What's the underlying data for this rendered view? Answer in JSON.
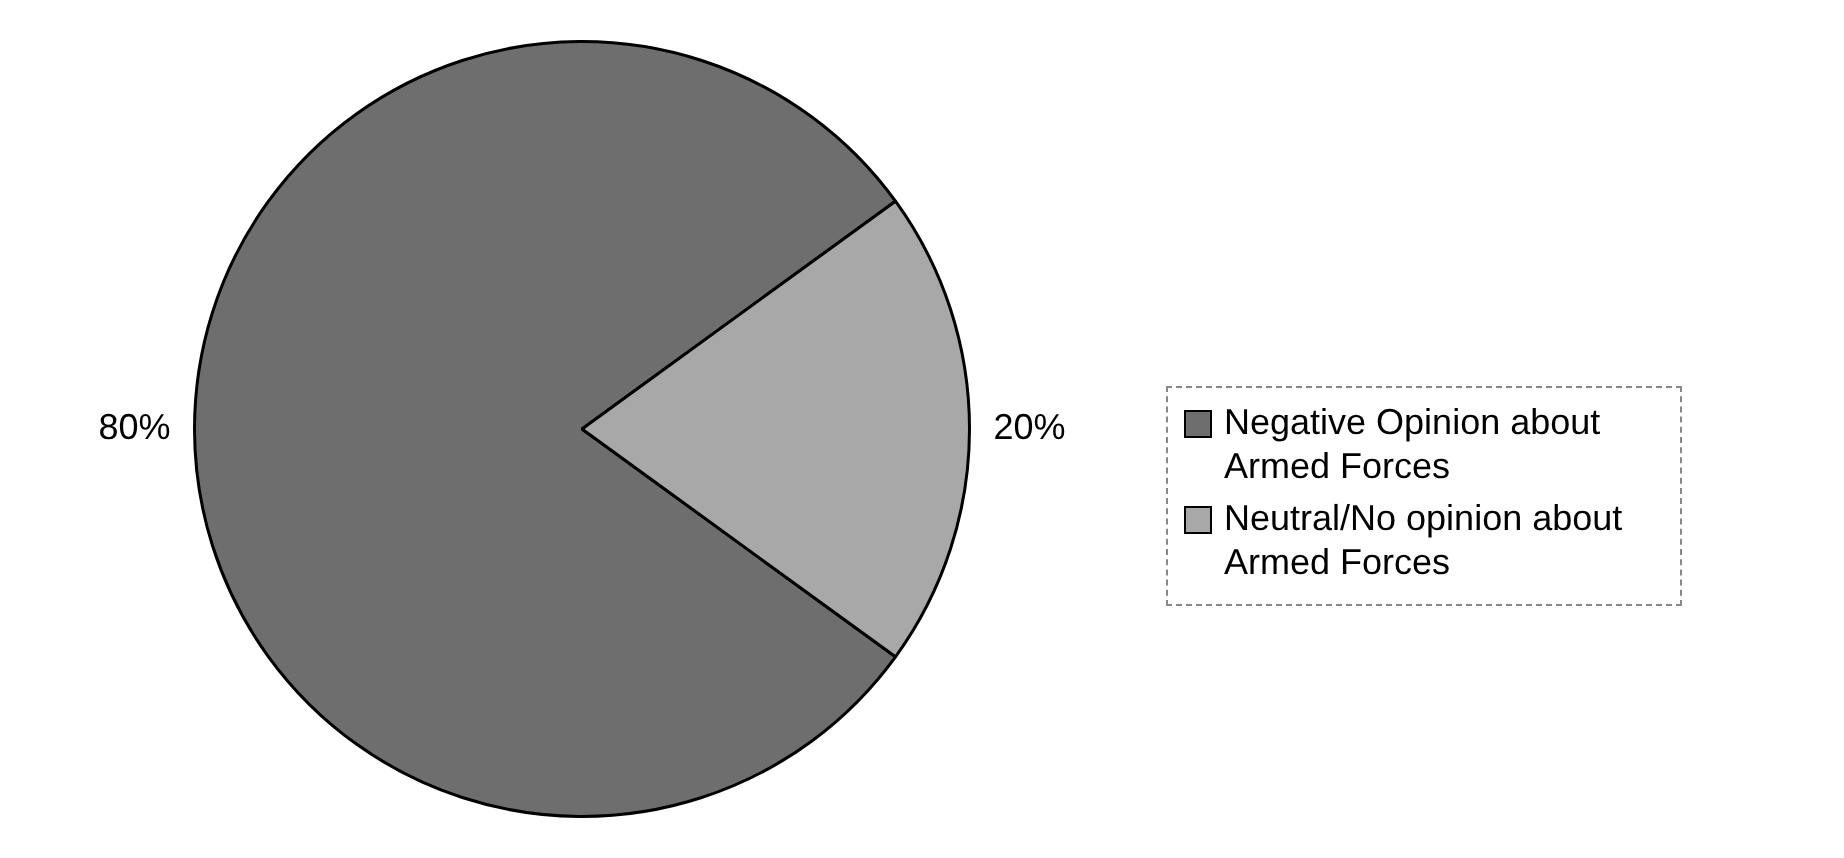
{
  "chart_data": {
    "type": "pie",
    "categories": [
      "Negative Opinion about Armed Forces",
      "Neutral/No opinion about Armed Forces"
    ],
    "values": [
      80,
      20
    ],
    "colors": [
      "#6e6e6e",
      "#a8a8a8"
    ],
    "value_labels": [
      "80%",
      "20%"
    ],
    "legend": "right"
  }
}
